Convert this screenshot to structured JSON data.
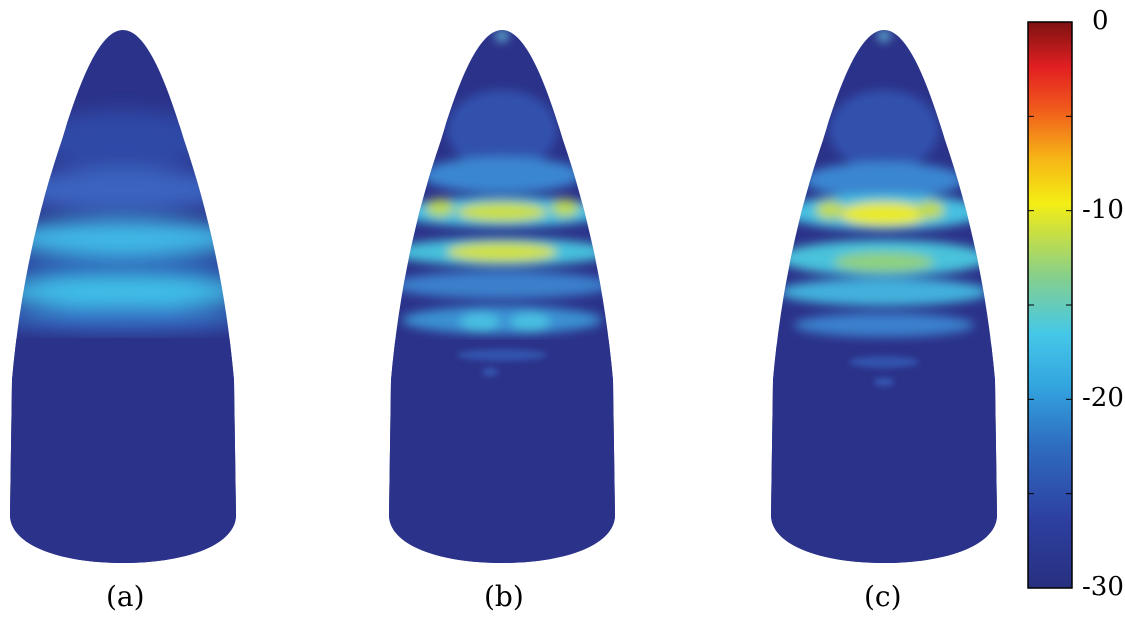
{
  "panels": [
    {
      "id": "a",
      "label": "(a)"
    },
    {
      "id": "b",
      "label": "(b)"
    },
    {
      "id": "c",
      "label": "(c)"
    }
  ],
  "colorbar": {
    "min": -30,
    "max": 0,
    "tick_values": [
      0,
      -10,
      -20,
      -30
    ],
    "tick_labels": [
      "0",
      "-10",
      "-20",
      "-30"
    ],
    "colormap": "jet"
  },
  "colors": {
    "background": "#ffffff",
    "dark_blue": "#2b3289",
    "cyan": "#3bbfe8",
    "yellow_green": "#d8e23a",
    "yellow": "#f2ee1a",
    "red": "#e8252a",
    "dark_red": "#8b1414"
  }
}
